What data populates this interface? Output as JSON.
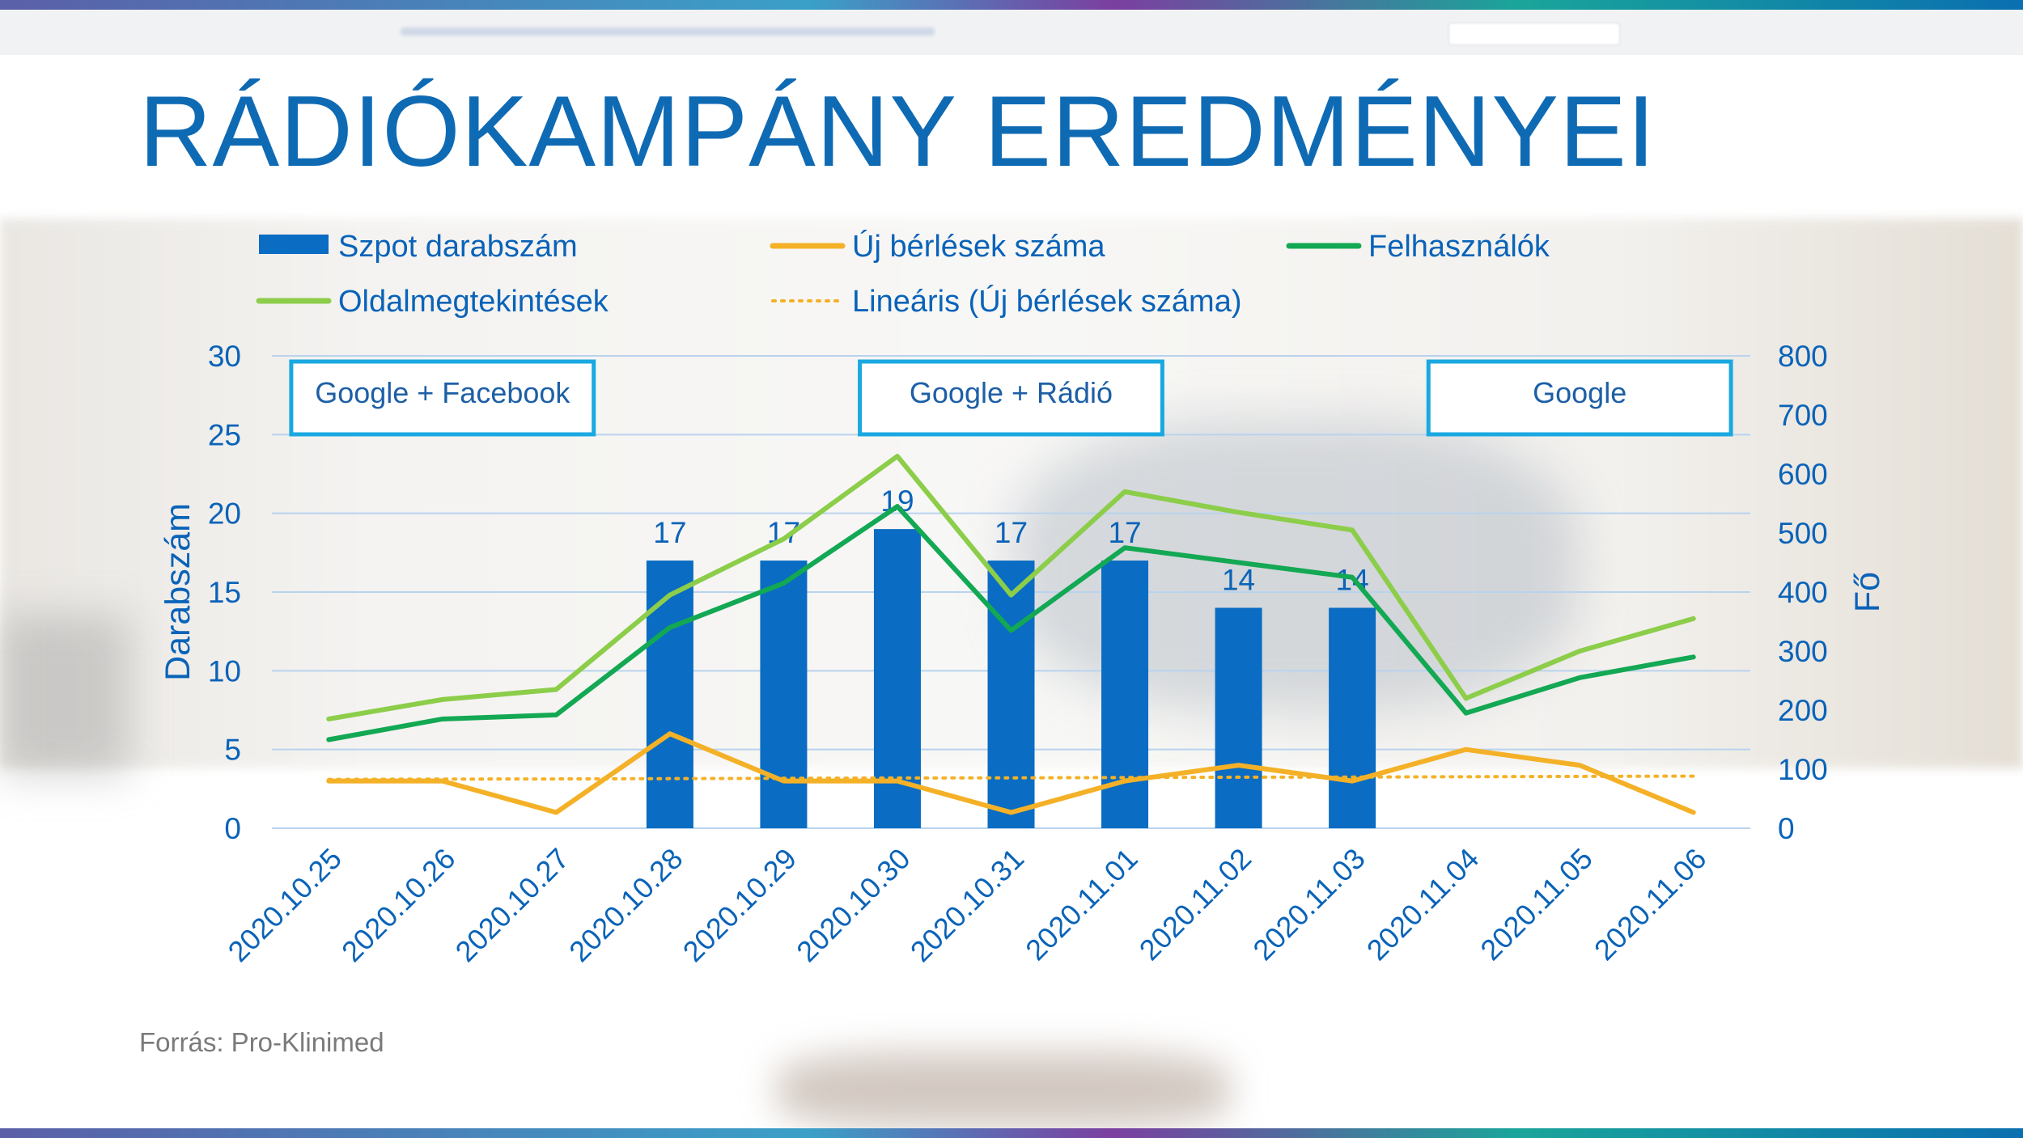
{
  "title": "RÁDIÓKAMPÁNY EREDMÉNYEI",
  "source": "Forrás: Pro-Klinimed",
  "chart_data": {
    "type": "bar",
    "categories": [
      "2020.10.25",
      "2020.10.26",
      "2020.10.27",
      "2020.10.28",
      "2020.10.29",
      "2020.10.30",
      "2020.10.31",
      "2020.11.01",
      "2020.11.02",
      "2020.11.03",
      "2020.11.04",
      "2020.11.05",
      "2020.11.06"
    ],
    "ylabel": "Darabszám",
    "y2label": "Fő",
    "ylim": [
      0,
      30
    ],
    "y2lim": [
      0,
      800
    ],
    "yticks": [
      0,
      5,
      10,
      15,
      20,
      25,
      30
    ],
    "y2ticks": [
      0,
      100,
      200,
      300,
      400,
      500,
      600,
      700,
      800
    ],
    "grid": true,
    "legend_position": "top",
    "series": [
      {
        "name": "Szpot darabszám",
        "kind": "bar",
        "axis": "left",
        "color": "#0a6cc2",
        "values": [
          null,
          null,
          null,
          17,
          17,
          19,
          17,
          17,
          14,
          14,
          null,
          null,
          null
        ],
        "labels": [
          "",
          "",
          "",
          "17",
          "17",
          "19",
          "17",
          "17",
          "14",
          "14",
          "",
          "",
          ""
        ]
      },
      {
        "name": "Új bérlések száma",
        "kind": "line",
        "axis": "left",
        "color": "#f4b127",
        "values": [
          3,
          3,
          1,
          6,
          3,
          3,
          1,
          3,
          4,
          3,
          5,
          4,
          1
        ]
      },
      {
        "name": "Felhasználók",
        "kind": "line",
        "axis": "right",
        "color": "#13a853",
        "values": [
          150,
          185,
          192,
          340,
          415,
          545,
          335,
          475,
          450,
          425,
          195,
          255,
          290
        ]
      },
      {
        "name": "Oldalmegtekintések",
        "kind": "line",
        "axis": "right",
        "color": "#8ccd4a",
        "values": [
          185,
          218,
          235,
          395,
          490,
          630,
          395,
          570,
          535,
          505,
          220,
          300,
          355
        ]
      },
      {
        "name": "Lineáris (Új bérlések száma)",
        "kind": "trend",
        "axis": "left",
        "color": "#f4b127",
        "values": [
          3.1,
          3.12,
          3.13,
          3.15,
          3.17,
          3.19,
          3.2,
          3.22,
          3.24,
          3.25,
          3.27,
          3.29,
          3.31
        ]
      }
    ],
    "annotations": [
      {
        "text": "Google + Facebook",
        "from": 0,
        "to": 2
      },
      {
        "text": "Google + Rádió",
        "from": 5,
        "to": 7
      },
      {
        "text": "Google",
        "from": 10,
        "to": 12
      }
    ]
  }
}
